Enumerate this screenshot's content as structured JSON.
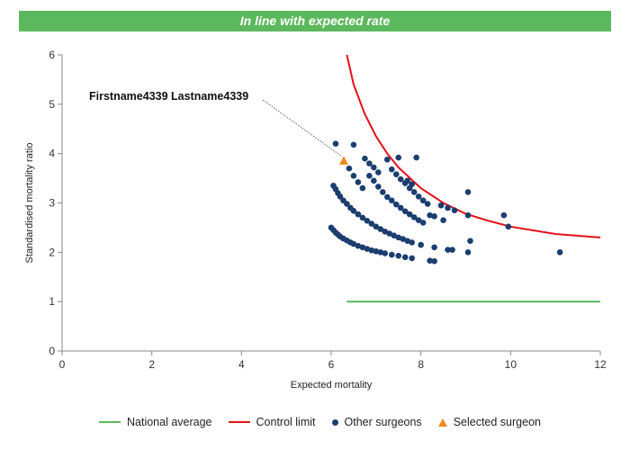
{
  "banner": {
    "title": "In line with expected rate"
  },
  "colors": {
    "banner": "#5cb85c",
    "national_average": "#5cb85c",
    "control_limit": "#e3121a",
    "other_surgeons": "#1b3e6f",
    "selected_surgeon": "#f08a1c"
  },
  "chart_data": {
    "type": "scatter",
    "title": "In line with expected rate",
    "xlabel": "Expected mortality",
    "ylabel": "Standardised mortality ratio",
    "xlim": [
      0,
      12
    ],
    "ylim": [
      0,
      6
    ],
    "xticks": [
      0,
      2,
      4,
      6,
      8,
      10,
      12
    ],
    "yticks": [
      0,
      1,
      2,
      3,
      4,
      5,
      6
    ],
    "grid": false,
    "legend_position": "bottom",
    "series": [
      {
        "name": "National average",
        "kind": "line",
        "x": [
          6.35,
          12
        ],
        "y": [
          1.0,
          1.0
        ]
      },
      {
        "name": "Control limit",
        "kind": "line",
        "x": [
          6.35,
          6.5,
          6.75,
          7.0,
          7.25,
          7.5,
          8.0,
          8.5,
          9.0,
          9.5,
          10.0,
          11.0,
          12.0
        ],
        "y": [
          6.0,
          5.4,
          4.8,
          4.35,
          4.0,
          3.72,
          3.3,
          3.0,
          2.78,
          2.64,
          2.52,
          2.37,
          2.3
        ]
      },
      {
        "name": "Other surgeons",
        "kind": "scatter",
        "points": [
          [
            6.0,
            2.5
          ],
          [
            6.05,
            2.45
          ],
          [
            6.1,
            2.4
          ],
          [
            6.15,
            2.36
          ],
          [
            6.2,
            2.32
          ],
          [
            6.27,
            2.28
          ],
          [
            6.35,
            2.24
          ],
          [
            6.43,
            2.2
          ],
          [
            6.5,
            2.17
          ],
          [
            6.6,
            2.13
          ],
          [
            6.7,
            2.1
          ],
          [
            6.8,
            2.07
          ],
          [
            6.9,
            2.04
          ],
          [
            7.0,
            2.02
          ],
          [
            7.1,
            2.0
          ],
          [
            7.2,
            1.98
          ],
          [
            7.35,
            1.95
          ],
          [
            7.5,
            1.93
          ],
          [
            7.65,
            1.9
          ],
          [
            7.8,
            1.88
          ],
          [
            8.2,
            1.83
          ],
          [
            8.3,
            1.82
          ],
          [
            6.05,
            3.35
          ],
          [
            6.1,
            3.28
          ],
          [
            6.15,
            3.2
          ],
          [
            6.2,
            3.13
          ],
          [
            6.27,
            3.05
          ],
          [
            6.35,
            2.98
          ],
          [
            6.43,
            2.9
          ],
          [
            6.5,
            2.84
          ],
          [
            6.6,
            2.77
          ],
          [
            6.7,
            2.7
          ],
          [
            6.8,
            2.64
          ],
          [
            6.9,
            2.58
          ],
          [
            7.0,
            2.52
          ],
          [
            7.1,
            2.47
          ],
          [
            7.2,
            2.42
          ],
          [
            7.3,
            2.38
          ],
          [
            7.4,
            2.34
          ],
          [
            7.5,
            2.3
          ],
          [
            7.6,
            2.27
          ],
          [
            7.7,
            2.23
          ],
          [
            7.8,
            2.2
          ],
          [
            8.0,
            2.15
          ],
          [
            8.3,
            2.1
          ],
          [
            8.6,
            2.05
          ],
          [
            8.7,
            2.05
          ],
          [
            9.05,
            2.0
          ],
          [
            6.4,
            3.7
          ],
          [
            6.5,
            3.55
          ],
          [
            6.6,
            3.42
          ],
          [
            6.7,
            3.3
          ],
          [
            6.85,
            3.55
          ],
          [
            6.95,
            3.45
          ],
          [
            7.05,
            3.33
          ],
          [
            7.15,
            3.22
          ],
          [
            7.25,
            3.12
          ],
          [
            7.35,
            3.05
          ],
          [
            7.45,
            2.97
          ],
          [
            7.55,
            2.9
          ],
          [
            7.65,
            2.83
          ],
          [
            7.75,
            2.77
          ],
          [
            7.85,
            2.71
          ],
          [
            7.95,
            2.65
          ],
          [
            8.05,
            2.6
          ],
          [
            8.2,
            2.75
          ],
          [
            8.3,
            2.73
          ],
          [
            8.5,
            2.65
          ],
          [
            8.6,
            2.9
          ],
          [
            8.75,
            2.85
          ],
          [
            9.05,
            2.75
          ],
          [
            9.1,
            2.23
          ],
          [
            9.85,
            2.75
          ],
          [
            9.95,
            2.52
          ],
          [
            11.1,
            2.0
          ],
          [
            6.75,
            3.9
          ],
          [
            6.85,
            3.8
          ],
          [
            6.95,
            3.72
          ],
          [
            7.05,
            3.62
          ],
          [
            7.25,
            3.88
          ],
          [
            7.35,
            3.68
          ],
          [
            7.45,
            3.58
          ],
          [
            7.55,
            3.48
          ],
          [
            7.65,
            3.4
          ],
          [
            7.75,
            3.3
          ],
          [
            7.85,
            3.22
          ],
          [
            7.95,
            3.13
          ],
          [
            8.05,
            3.05
          ],
          [
            8.15,
            2.98
          ],
          [
            7.5,
            3.92
          ],
          [
            7.7,
            3.45
          ],
          [
            7.8,
            3.38
          ],
          [
            7.9,
            3.92
          ],
          [
            8.45,
            2.95
          ],
          [
            9.05,
            3.22
          ],
          [
            6.1,
            4.2
          ],
          [
            6.5,
            4.18
          ]
        ]
      },
      {
        "name": "Selected surgeon",
        "kind": "scatter",
        "points": [
          [
            6.28,
            3.85
          ]
        ],
        "label": "Firstname4339 Lastname4339"
      }
    ]
  },
  "legend": {
    "items": [
      {
        "label": "National average",
        "kind": "line",
        "color_key": "national_average"
      },
      {
        "label": "Control limit",
        "kind": "line",
        "color_key": "control_limit"
      },
      {
        "label": "Other surgeons",
        "kind": "dot",
        "color_key": "other_surgeons"
      },
      {
        "label": "Selected surgeon",
        "kind": "triangle",
        "color_key": "selected_surgeon"
      }
    ]
  }
}
